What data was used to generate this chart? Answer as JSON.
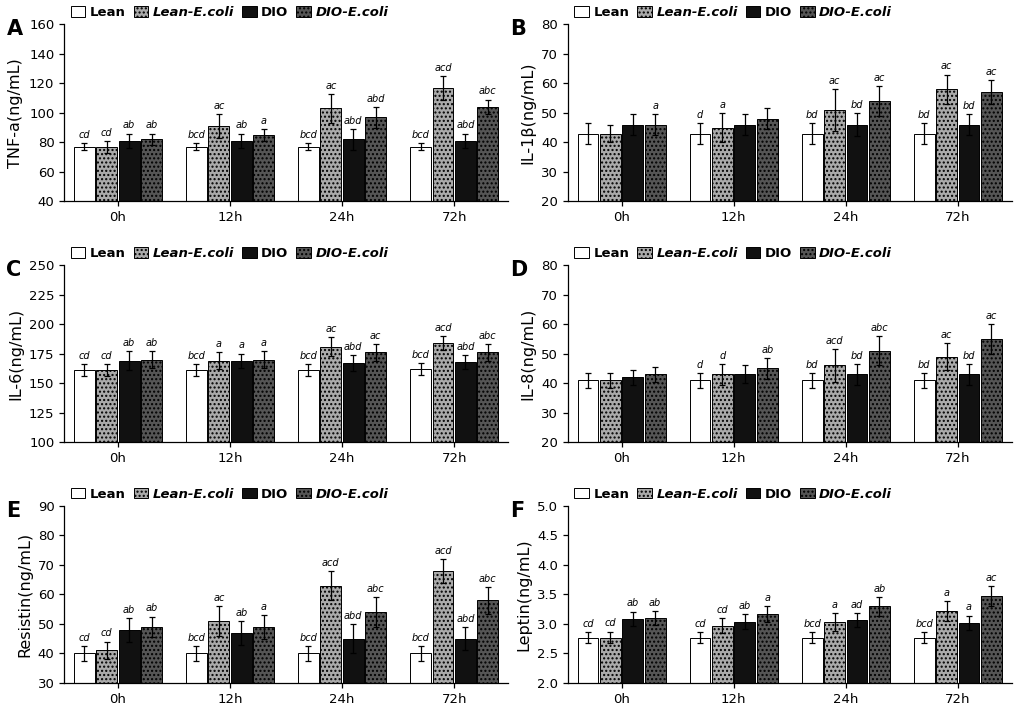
{
  "panels": [
    {
      "label": "A",
      "ylabel": "TNF-a(ng/mL)",
      "ylim": [
        40,
        160
      ],
      "yticks": [
        40,
        60,
        80,
        100,
        120,
        140,
        160
      ],
      "time_points": [
        "0h",
        "12h",
        "24h",
        "72h"
      ],
      "values": [
        [
          77,
          77,
          77,
          77
        ],
        [
          77,
          91,
          103,
          117
        ],
        [
          81,
          81,
          82,
          81
        ],
        [
          82,
          85,
          97,
          104
        ]
      ],
      "errors": [
        [
          2.5,
          2.5,
          2.5,
          2.5
        ],
        [
          4,
          8,
          10,
          8
        ],
        [
          5,
          5,
          7,
          5
        ],
        [
          4,
          4,
          7,
          5
        ]
      ],
      "annotations": [
        [
          "cd",
          "bcd",
          "bcd",
          "bcd"
        ],
        [
          "cd",
          "ac",
          "ac",
          "acd"
        ],
        [
          "ab",
          "ab",
          "abd",
          "abd"
        ],
        [
          "ab",
          "a",
          "abd",
          "abc"
        ]
      ]
    },
    {
      "label": "B",
      "ylabel": "IL-1β(ng/mL)",
      "ylim": [
        20,
        80
      ],
      "yticks": [
        20,
        30,
        40,
        50,
        60,
        70,
        80
      ],
      "time_points": [
        "0h",
        "12h",
        "24h",
        "72h"
      ],
      "values": [
        [
          43,
          43,
          43,
          43
        ],
        [
          43,
          45,
          51,
          58
        ],
        [
          46,
          46,
          46,
          46
        ],
        [
          46,
          48,
          54,
          57
        ]
      ],
      "errors": [
        [
          3.5,
          3.5,
          3.5,
          3.5
        ],
        [
          3,
          5,
          7,
          5
        ],
        [
          3.5,
          3.5,
          4,
          3.5
        ],
        [
          3.5,
          3.5,
          5,
          4
        ]
      ],
      "annotations": [
        [
          "",
          "d",
          "bd",
          "bd"
        ],
        [
          "",
          "a",
          "ac",
          "ac"
        ],
        [
          "",
          "",
          "bd",
          "bd"
        ],
        [
          "a",
          "",
          "ac",
          "ac"
        ]
      ]
    },
    {
      "label": "C",
      "ylabel": "IL-6(ng/mL)",
      "ylim": [
        100,
        250
      ],
      "yticks": [
        100,
        125,
        150,
        175,
        200,
        225,
        250
      ],
      "time_points": [
        "0h",
        "12h",
        "24h",
        "72h"
      ],
      "values": [
        [
          161,
          161,
          161,
          162
        ],
        [
          161,
          169,
          181,
          184
        ],
        [
          169,
          169,
          167,
          168
        ],
        [
          170,
          170,
          176,
          176
        ]
      ],
      "errors": [
        [
          5,
          5,
          5,
          5
        ],
        [
          5,
          7,
          8,
          6
        ],
        [
          8,
          6,
          7,
          6
        ],
        [
          7,
          7,
          7,
          7
        ]
      ],
      "annotations": [
        [
          "cd",
          "bcd",
          "bcd",
          "bcd"
        ],
        [
          "cd",
          "a",
          "ac",
          "acd"
        ],
        [
          "ab",
          "a",
          "abd",
          "abd"
        ],
        [
          "ab",
          "a",
          "ac",
          "abc"
        ]
      ]
    },
    {
      "label": "D",
      "ylabel": "IL-8(ng/mL)",
      "ylim": [
        20,
        80
      ],
      "yticks": [
        20,
        30,
        40,
        50,
        60,
        70,
        80
      ],
      "time_points": [
        "0h",
        "12h",
        "24h",
        "72h"
      ],
      "values": [
        [
          41,
          41,
          41,
          41
        ],
        [
          41,
          43,
          46,
          49
        ],
        [
          42,
          43,
          43,
          43
        ],
        [
          43,
          45,
          51,
          55
        ]
      ],
      "errors": [
        [
          2.5,
          2.5,
          2.5,
          2.5
        ],
        [
          2.5,
          3.5,
          5.5,
          4.5
        ],
        [
          2.5,
          3,
          3.5,
          3.5
        ],
        [
          2.5,
          3.5,
          5,
          5
        ]
      ],
      "annotations": [
        [
          "",
          "d",
          "bd",
          "bd"
        ],
        [
          "",
          "d",
          "acd",
          "ac"
        ],
        [
          "",
          "",
          "bd",
          "bd"
        ],
        [
          "",
          "ab",
          "abc",
          "ac"
        ]
      ]
    },
    {
      "label": "E",
      "ylabel": "Resistin(ng/mL)",
      "ylim": [
        30,
        90
      ],
      "yticks": [
        30,
        40,
        50,
        60,
        70,
        80,
        90
      ],
      "time_points": [
        "0h",
        "12h",
        "24h",
        "72h"
      ],
      "values": [
        [
          40,
          40,
          40,
          40
        ],
        [
          41,
          51,
          63,
          68
        ],
        [
          48,
          47,
          45,
          45
        ],
        [
          49,
          49,
          54,
          58
        ]
      ],
      "errors": [
        [
          2.5,
          2.5,
          2.5,
          2.5
        ],
        [
          3,
          5,
          5,
          4
        ],
        [
          4,
          4,
          5,
          4
        ],
        [
          3.5,
          4,
          5,
          4.5
        ]
      ],
      "annotations": [
        [
          "cd",
          "bcd",
          "bcd",
          "bcd"
        ],
        [
          "cd",
          "ac",
          "acd",
          "acd"
        ],
        [
          "ab",
          "ab",
          "abd",
          "abd"
        ],
        [
          "ab",
          "a",
          "abc",
          "abc"
        ]
      ]
    },
    {
      "label": "F",
      "ylabel": "Leptin(ng/mL)",
      "ylim": [
        2,
        5
      ],
      "yticks": [
        2,
        2.5,
        3,
        3.5,
        4,
        4.5,
        5
      ],
      "time_points": [
        "0h",
        "12h",
        "24h",
        "72h"
      ],
      "values": [
        [
          2.77,
          2.77,
          2.77,
          2.77
        ],
        [
          2.77,
          2.97,
          3.03,
          3.22
        ],
        [
          3.09,
          3.04,
          3.07,
          3.02
        ],
        [
          3.1,
          3.17,
          3.3,
          3.47
        ]
      ],
      "errors": [
        [
          0.09,
          0.09,
          0.09,
          0.09
        ],
        [
          0.1,
          0.13,
          0.15,
          0.17
        ],
        [
          0.12,
          0.12,
          0.12,
          0.12
        ],
        [
          0.12,
          0.13,
          0.16,
          0.17
        ]
      ],
      "annotations": [
        [
          "cd",
          "cd",
          "bcd",
          "bcd"
        ],
        [
          "cd",
          "cd",
          "a",
          "a"
        ],
        [
          "ab",
          "ab",
          "ad",
          "a"
        ],
        [
          "ab",
          "a",
          "ab",
          "ac"
        ]
      ]
    }
  ],
  "legend_labels_plain": [
    "Lean",
    "Lean-E.coli",
    "DIO",
    "DIO-E.coli"
  ],
  "legend_labels_display": [
    "Lean",
    "Lean-",
    "DIO",
    "DIO-"
  ],
  "legend_ecoli_suffix": [
    "",
    "E.coli",
    "",
    "E.coli"
  ],
  "bar_colors": [
    "#ffffff",
    "#aaaaaa",
    "#111111",
    "#555555"
  ],
  "bar_hatches": [
    null,
    "....",
    null,
    "...."
  ],
  "bar_edgecolors": [
    "#000000",
    "#000000",
    "#000000",
    "#000000"
  ],
  "annotation_fontsize": 7.0,
  "label_fontsize": 11.5,
  "tick_fontsize": 9.5,
  "legend_fontsize": 9.5,
  "panel_label_fontsize": 15,
  "background_color": "#ffffff"
}
